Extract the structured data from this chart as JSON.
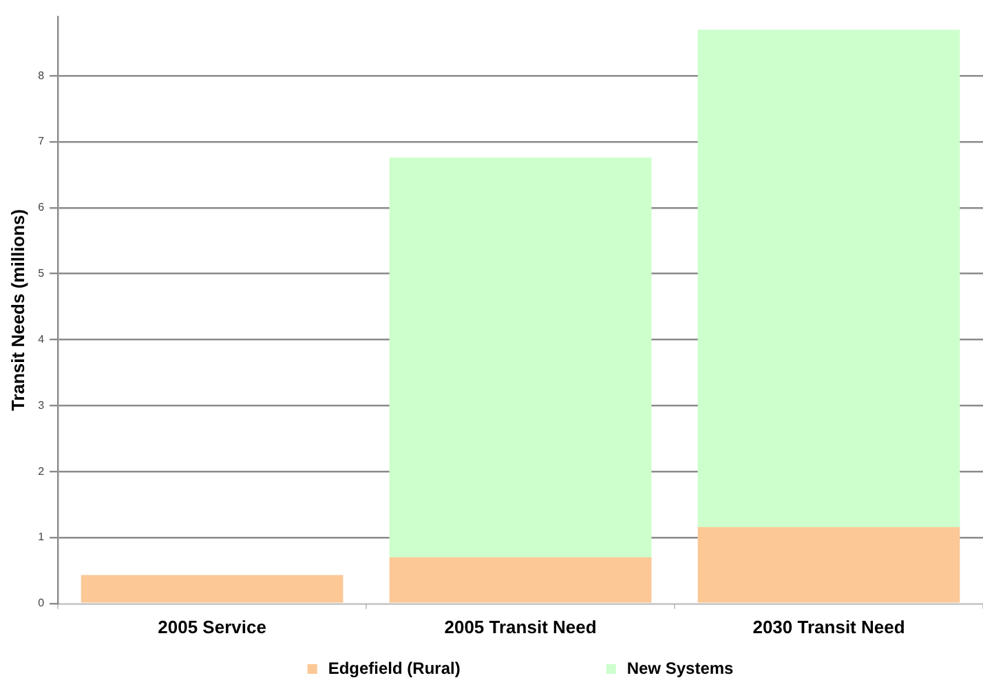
{
  "chart_data": {
    "type": "bar",
    "stacked": true,
    "categories": [
      "2005 Service",
      "2005 Transit Need",
      "2030 Transit Need"
    ],
    "series": [
      {
        "name": "Edgefield (Rural)",
        "color": "#fbc896",
        "values": [
          0.43,
          0.7,
          1.16
        ]
      },
      {
        "name": "New Systems",
        "color": "#ccffcc",
        "values": [
          null,
          6.06,
          7.54
        ]
      }
    ],
    "ylabel": "Transit Needs (millions)",
    "ylim": [
      0,
      8.9
    ],
    "yticks": [
      0,
      1,
      2,
      3,
      4,
      5,
      6,
      7,
      8
    ],
    "grid": "y",
    "legend": "bottom"
  }
}
